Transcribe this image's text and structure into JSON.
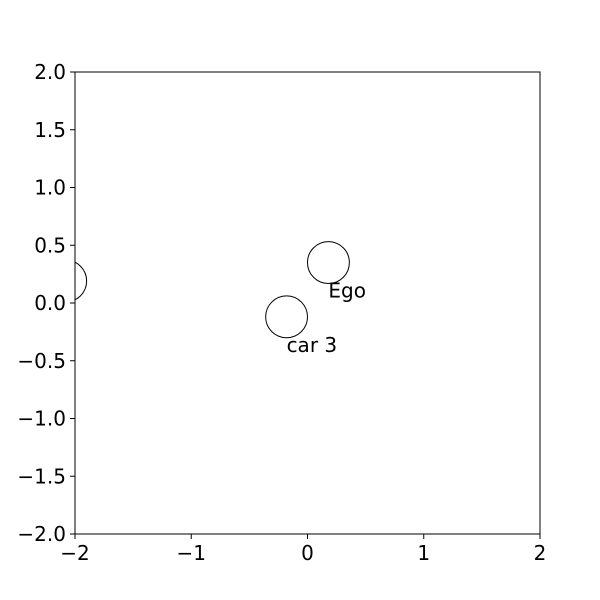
{
  "chart_data": {
    "type": "scatter",
    "title": "",
    "xlabel": "",
    "ylabel": "",
    "xlim": [
      -2,
      2
    ],
    "ylim": [
      -2,
      2
    ],
    "grid": false,
    "x_ticks": [
      {
        "value": -2,
        "label": "−2"
      },
      {
        "value": -1,
        "label": "−1"
      },
      {
        "value": 0,
        "label": "0"
      },
      {
        "value": 1,
        "label": "1"
      },
      {
        "value": 2,
        "label": "2"
      }
    ],
    "y_ticks": [
      {
        "value": 2.0,
        "label": "2.0"
      },
      {
        "value": 1.5,
        "label": "1.5"
      },
      {
        "value": 1.0,
        "label": "1.0"
      },
      {
        "value": 0.5,
        "label": "0.5"
      },
      {
        "value": 0.0,
        "label": "0.0"
      },
      {
        "value": -0.5,
        "label": "−0.5"
      },
      {
        "value": -1.0,
        "label": "−1.0"
      },
      {
        "value": -1.5,
        "label": "−1.5"
      },
      {
        "value": -2.0,
        "label": "−2.0"
      }
    ],
    "points": [
      {
        "id": "ego",
        "label": "Ego",
        "x": 0.18,
        "y": 0.35,
        "radius": 0.18
      },
      {
        "id": "car-3",
        "label": "car 3",
        "x": -0.18,
        "y": -0.12,
        "radius": 0.18
      },
      {
        "id": "unlabeled",
        "label": "",
        "x": -2.08,
        "y": 0.19,
        "radius": 0.18
      }
    ],
    "colors": {
      "edge": "#000000",
      "fill": "none"
    }
  }
}
